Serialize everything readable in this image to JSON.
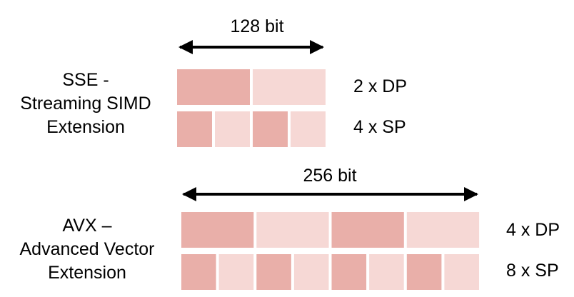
{
  "sse": {
    "width_label": "128 bit",
    "name": [
      "SSE -",
      "Streaming SIMD",
      "Extension"
    ],
    "rows": [
      {
        "label": "2 x DP",
        "cells": [
          "dark",
          "light"
        ]
      },
      {
        "label": "4 x SP",
        "cells": [
          "dark",
          "light",
          "dark",
          "light"
        ]
      }
    ]
  },
  "avx": {
    "width_label": "256 bit",
    "name": [
      "AVX –",
      "Advanced Vector",
      "Extension"
    ],
    "rows": [
      {
        "label": "4 x DP",
        "cells": [
          "dark",
          "light",
          "dark",
          "light"
        ]
      },
      {
        "label": "8 x SP",
        "cells": [
          "dark",
          "light",
          "dark",
          "light",
          "dark",
          "light",
          "dark",
          "light"
        ]
      }
    ]
  },
  "colors": {
    "dark": "#e9afa9",
    "light": "#f6d8d5",
    "arrow": "#000000"
  }
}
